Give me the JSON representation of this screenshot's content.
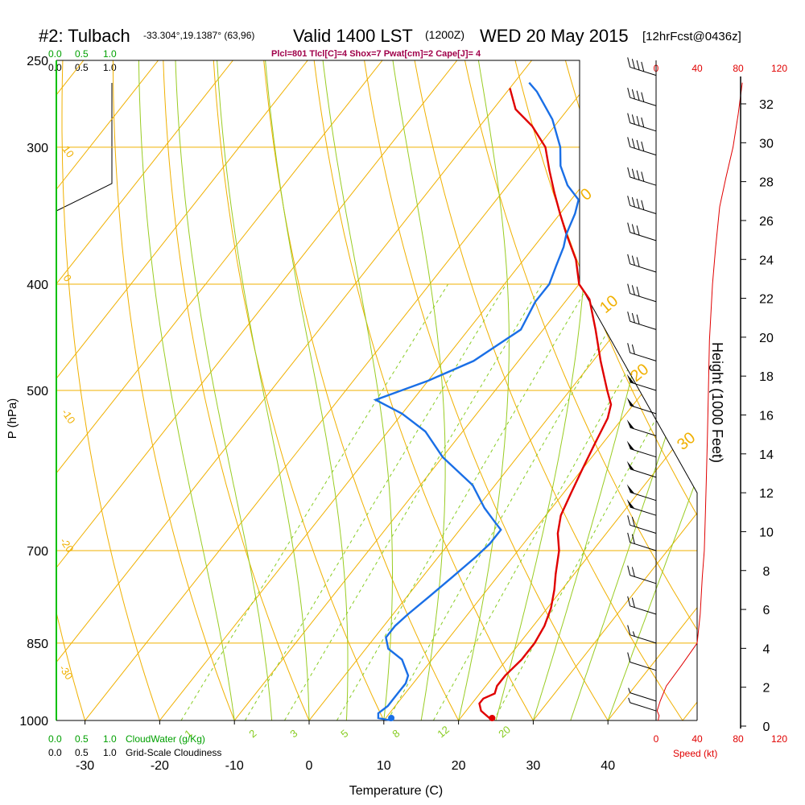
{
  "header": {
    "station": "#2: Tulbach",
    "coords": "-33.304°,19.1387° (63,96)",
    "valid": "Valid 1400 LST",
    "zulu": "(1200Z)",
    "date": "WED 20 May 2015",
    "fcst": "[12hrFcst@0436z]",
    "params": "Plcl=801 Tlcl[C]=4 Shox=7 Pwat[cm]=2 Cape[J]= 4"
  },
  "colors": {
    "isobar": "#f0b000",
    "dry_adiabat": "#f0b000",
    "moist_adiabat": "#99cc22",
    "mixing_ratio": "#88cc22",
    "temperature": "#e00000",
    "dewpoint": "#1a6fe6",
    "green_label": "#00a000",
    "red_label": "#e00000",
    "params_text": "#a0004a"
  },
  "chart_data": {
    "type": "line",
    "title": "#2: Tulbach -33.304°,19.1387° (63,96) Valid 1400 LST (1200Z) WED 20 May 2015 [12hrFcst@0436z]",
    "xlabel": "Temperature (C)",
    "ylabel": "P (hPa)",
    "y2label": "Height (1000 Feet)",
    "xlim": [
      -34,
      36
    ],
    "ylim": [
      1000,
      250
    ],
    "yscale": "log",
    "x_ticks": [
      "-30",
      "-20",
      "-10",
      "0",
      "10",
      "20",
      "30",
      "40"
    ],
    "y_ticks": [
      "250",
      "300",
      "400",
      "500",
      "700",
      "850",
      "1000"
    ],
    "height_ticks": [
      "0",
      "2",
      "4",
      "6",
      "8",
      "10",
      "12",
      "14",
      "16",
      "18",
      "20",
      "22",
      "24",
      "26",
      "28",
      "30",
      "32"
    ],
    "isotherm_labels": [
      "-10",
      "0",
      "10",
      "20",
      "30"
    ],
    "mixing_ratio_labels": [
      "1",
      "2",
      "3",
      "5",
      "8",
      "12",
      "20"
    ],
    "cloud_scale_labels": [
      "0.0",
      "0.5",
      "1.0"
    ],
    "cloudwater_label": "CloudWater (g/Kg)",
    "cloudiness_label": "Grid-Scale Cloudiness",
    "speed_label": "Speed (kt)",
    "speed_ticks": [
      "0",
      "40",
      "80",
      "120"
    ],
    "series": [
      {
        "name": "Temperature",
        "points": [
          [
            24.5,
            1000
          ],
          [
            22,
            980
          ],
          [
            21,
            965
          ],
          [
            21,
            955
          ],
          [
            22,
            945
          ],
          [
            21.5,
            930
          ],
          [
            21.5,
            910
          ],
          [
            22,
            880
          ],
          [
            22,
            850
          ],
          [
            21.5,
            820
          ],
          [
            20.5,
            790
          ],
          [
            19,
            760
          ],
          [
            17.5,
            735
          ],
          [
            15.5,
            700
          ],
          [
            13.5,
            675
          ],
          [
            12,
            650
          ],
          [
            11,
            620
          ],
          [
            10,
            590
          ],
          [
            9,
            560
          ],
          [
            8,
            530
          ],
          [
            7,
            515
          ],
          [
            5,
            500
          ],
          [
            1,
            470
          ],
          [
            -3,
            440
          ],
          [
            -7,
            413
          ],
          [
            -10,
            400
          ],
          [
            -13,
            380
          ],
          [
            -17,
            360
          ],
          [
            -20,
            345
          ],
          [
            -23,
            330
          ],
          [
            -26,
            315
          ],
          [
            -29,
            300
          ],
          [
            -33,
            287
          ],
          [
            -37,
            277
          ],
          [
            -40,
            265
          ]
        ]
      },
      {
        "name": "Dewpoint",
        "points": [
          [
            11,
            1000
          ],
          [
            9,
            995
          ],
          [
            8.5,
            985
          ],
          [
            9,
            970
          ],
          [
            9,
            955
          ],
          [
            9,
            940
          ],
          [
            9,
            925
          ],
          [
            8.5,
            910
          ],
          [
            6,
            880
          ],
          [
            3,
            860
          ],
          [
            1.5,
            840
          ],
          [
            1.5,
            820
          ],
          [
            2,
            800
          ],
          [
            3,
            770
          ],
          [
            4,
            740
          ],
          [
            5,
            710
          ],
          [
            5.5,
            690
          ],
          [
            5.5,
            670
          ],
          [
            4,
            660
          ],
          [
            1,
            640
          ],
          [
            -3,
            610
          ],
          [
            -10,
            575
          ],
          [
            -15,
            545
          ],
          [
            -20,
            525
          ],
          [
            -25,
            510
          ],
          [
            -20,
            490
          ],
          [
            -16,
            470
          ],
          [
            -13,
            440
          ],
          [
            -14,
            415
          ],
          [
            -14,
            400
          ],
          [
            -15,
            385
          ],
          [
            -16,
            370
          ],
          [
            -17,
            360
          ],
          [
            -18,
            345
          ],
          [
            -19,
            335
          ],
          [
            -22,
            325
          ],
          [
            -25,
            312
          ],
          [
            -27,
            300
          ],
          [
            -31,
            283
          ],
          [
            -36,
            267
          ],
          [
            -38,
            262
          ]
        ]
      }
    ],
    "surface_temperature": 24.5,
    "surface_dewpoint": 11,
    "winds_kt": [
      {
        "p": 980,
        "spd": 5,
        "dir": 300
      },
      {
        "p": 960,
        "spd": 5,
        "dir": 290
      },
      {
        "p": 900,
        "spd": 10,
        "dir": 300
      },
      {
        "p": 850,
        "spd": 15,
        "dir": 300
      },
      {
        "p": 800,
        "spd": 20,
        "dir": 290
      },
      {
        "p": 750,
        "spd": 20,
        "dir": 290
      },
      {
        "p": 700,
        "spd": 20,
        "dir": 290
      },
      {
        "p": 675,
        "spd": 20,
        "dir": 290
      },
      {
        "p": 650,
        "spd": 50,
        "dir": 290
      },
      {
        "p": 630,
        "spd": 50,
        "dir": 290
      },
      {
        "p": 600,
        "spd": 50,
        "dir": 290
      },
      {
        "p": 575,
        "spd": 50,
        "dir": 290
      },
      {
        "p": 550,
        "spd": 50,
        "dir": 290
      },
      {
        "p": 525,
        "spd": 50,
        "dir": 290
      },
      {
        "p": 500,
        "spd": 50,
        "dir": 290
      },
      {
        "p": 470,
        "spd": 20,
        "dir": 290
      },
      {
        "p": 440,
        "spd": 30,
        "dir": 290
      },
      {
        "p": 415,
        "spd": 30,
        "dir": 290
      },
      {
        "p": 390,
        "spd": 30,
        "dir": 290
      },
      {
        "p": 365,
        "spd": 30,
        "dir": 290
      },
      {
        "p": 345,
        "spd": 40,
        "dir": 290
      },
      {
        "p": 325,
        "spd": 40,
        "dir": 290
      },
      {
        "p": 305,
        "spd": 40,
        "dir": 290
      },
      {
        "p": 290,
        "spd": 40,
        "dir": 290
      },
      {
        "p": 275,
        "spd": 40,
        "dir": 290
      },
      {
        "p": 258,
        "spd": 40,
        "dir": 290
      }
    ],
    "wind_speed_profile": [
      [
        2,
        1000
      ],
      [
        3,
        990
      ],
      [
        1,
        980
      ],
      [
        4,
        960
      ],
      [
        10,
        930
      ],
      [
        25,
        890
      ],
      [
        40,
        850
      ],
      [
        43,
        800
      ],
      [
        45,
        740
      ],
      [
        47,
        700
      ],
      [
        48,
        650
      ],
      [
        49,
        600
      ],
      [
        50,
        550
      ],
      [
        51,
        500
      ],
      [
        52,
        450
      ],
      [
        55,
        400
      ],
      [
        58,
        370
      ],
      [
        62,
        340
      ],
      [
        68,
        320
      ],
      [
        75,
        300
      ],
      [
        80,
        280
      ],
      [
        84,
        262
      ]
    ]
  }
}
